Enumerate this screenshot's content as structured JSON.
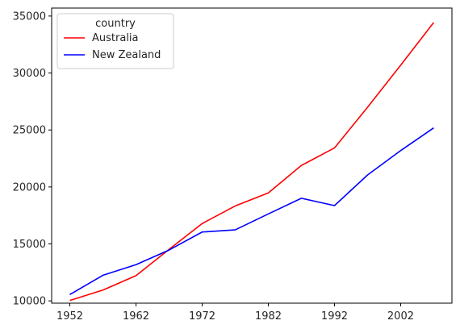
{
  "chart_data": {
    "type": "line",
    "title": "",
    "xlabel": "",
    "ylabel": "",
    "xlim": [
      1949.25,
      2009.75
    ],
    "ylim": [
      9800,
      35700
    ],
    "x_ticks": [
      1952,
      1962,
      1972,
      1982,
      1992,
      2002
    ],
    "y_ticks": [
      10000,
      15000,
      20000,
      25000,
      30000,
      35000
    ],
    "grid": false,
    "legend": {
      "title": "country",
      "position": "top-left"
    },
    "x": [
      1952,
      1957,
      1962,
      1967,
      1972,
      1977,
      1982,
      1987,
      1992,
      1997,
      2002,
      2007
    ],
    "series": [
      {
        "name": "Australia",
        "color": "#ff0000",
        "values": [
          10040,
          10950,
          12217,
          14526,
          16789,
          18334,
          19477,
          21889,
          23425,
          26998,
          30688,
          34435
        ]
      },
      {
        "name": "New Zealand",
        "color": "#0000ff",
        "values": [
          10557,
          12247,
          13176,
          14464,
          16046,
          16234,
          17632,
          19007,
          18363,
          21050,
          23190,
          25185
        ]
      }
    ]
  }
}
